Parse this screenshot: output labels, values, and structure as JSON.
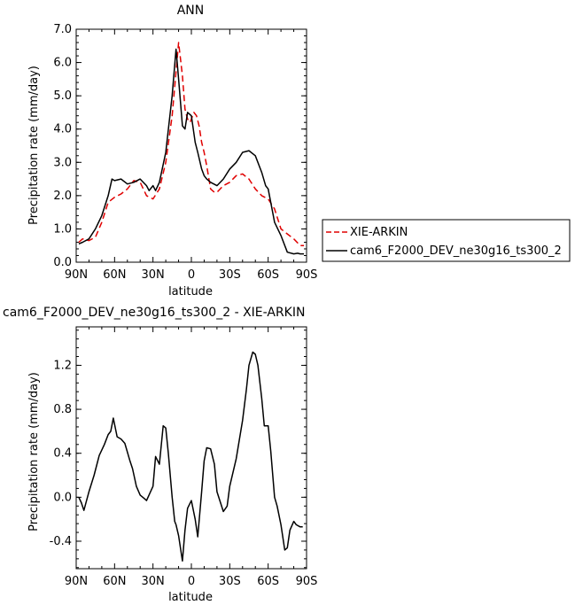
{
  "chart_data": [
    {
      "type": "line",
      "title": "ANN",
      "xlabel": "latitude",
      "ylabel": "Precipitation rate (mm/day)",
      "ylim": [
        0,
        7
      ],
      "xlim": [
        90,
        -90
      ],
      "xticks": [
        "90N",
        "60N",
        "30N",
        "0",
        "30S",
        "60S",
        "90S"
      ],
      "yticks": [
        "0.0",
        "1.0",
        "2.0",
        "3.0",
        "4.0",
        "5.0",
        "6.0",
        "7.0"
      ],
      "legend_position": "right",
      "series": [
        {
          "name": "XIE-ARKIN",
          "color": "#e00000",
          "dash": true,
          "x": [
            88,
            85,
            80,
            75,
            70,
            65,
            60,
            55,
            50,
            45,
            40,
            35,
            30,
            25,
            20,
            15,
            10,
            7,
            5,
            3,
            1,
            0,
            -2,
            -4,
            -6,
            -8,
            -10,
            -12,
            -15,
            -18,
            -20,
            -25,
            -30,
            -35,
            -40,
            -45,
            -50,
            -55,
            -60,
            -65,
            -70,
            -75,
            -80,
            -85,
            -88
          ],
          "y": [
            0.6,
            0.7,
            0.65,
            0.75,
            1.2,
            1.8,
            1.95,
            2.05,
            2.2,
            2.45,
            2.4,
            2.0,
            1.9,
            2.2,
            3.0,
            4.4,
            6.6,
            5.6,
            4.6,
            4.3,
            4.2,
            4.3,
            4.5,
            4.4,
            4.1,
            3.6,
            3.3,
            2.9,
            2.2,
            2.1,
            2.1,
            2.3,
            2.4,
            2.6,
            2.65,
            2.5,
            2.2,
            2.0,
            1.9,
            1.6,
            1.0,
            0.85,
            0.7,
            0.5,
            0.5
          ]
        },
        {
          "name": "cam6_F2000_DEV_ne30g16_ts300_2",
          "color": "#000000",
          "dash": false,
          "x": [
            88,
            85,
            80,
            75,
            70,
            65,
            62,
            60,
            55,
            50,
            45,
            40,
            35,
            33,
            30,
            28,
            25,
            20,
            15,
            12,
            10,
            7,
            5,
            3,
            0,
            -3,
            -5,
            -8,
            -10,
            -12,
            -15,
            -20,
            -25,
            -30,
            -35,
            -40,
            -45,
            -50,
            -55,
            -58,
            -60,
            -65,
            -70,
            -75,
            -80,
            -83,
            -85,
            -88
          ],
          "y": [
            0.55,
            0.6,
            0.7,
            1.0,
            1.4,
            2.0,
            2.5,
            2.45,
            2.5,
            2.35,
            2.4,
            2.5,
            2.3,
            2.15,
            2.3,
            2.15,
            2.4,
            3.3,
            5.0,
            6.4,
            5.5,
            4.1,
            4.0,
            4.5,
            4.4,
            3.6,
            3.3,
            2.8,
            2.6,
            2.5,
            2.4,
            2.3,
            2.5,
            2.8,
            3.0,
            3.3,
            3.35,
            3.2,
            2.7,
            2.3,
            2.2,
            1.2,
            0.8,
            0.3,
            0.25,
            0.27,
            0.25,
            0.25
          ]
        }
      ]
    },
    {
      "type": "line",
      "title": "cam6_F2000_DEV_ne30g16_ts300_2 - XIE-ARKIN",
      "xlabel": "latitude",
      "ylabel": "Precipitation rate (mm/day)",
      "ylim": [
        -0.65,
        1.55
      ],
      "xlim": [
        90,
        -90
      ],
      "xticks": [
        "90N",
        "60N",
        "30N",
        "0",
        "30S",
        "60S",
        "90S"
      ],
      "yticks": [
        "-0.4",
        "0.0",
        "0.4",
        "0.8",
        "1.2"
      ],
      "series": [
        {
          "color": "#000000",
          "x": [
            88,
            86,
            84,
            80,
            76,
            72,
            68,
            65,
            63,
            61,
            58,
            55,
            52,
            48,
            46,
            43,
            40,
            37,
            35,
            30,
            28,
            25,
            22,
            20,
            18,
            15,
            13,
            12,
            10,
            7,
            5,
            3,
            0,
            -3,
            -5,
            -8,
            -10,
            -12,
            -15,
            -18,
            -20,
            -25,
            -28,
            -30,
            -35,
            -40,
            -43,
            -45,
            -48,
            -50,
            -52,
            -55,
            -57,
            -60,
            -62,
            -65,
            -67,
            -70,
            -73,
            -75,
            -77,
            -80,
            -82,
            -85,
            -87
          ],
          "y": [
            0.0,
            -0.05,
            -0.12,
            0.05,
            0.2,
            0.38,
            0.48,
            0.57,
            0.6,
            0.72,
            0.55,
            0.53,
            0.49,
            0.33,
            0.26,
            0.1,
            0.02,
            -0.01,
            -0.03,
            0.1,
            0.37,
            0.3,
            0.65,
            0.63,
            0.4,
            0.0,
            -0.22,
            -0.25,
            -0.35,
            -0.58,
            -0.3,
            -0.1,
            -0.03,
            -0.2,
            -0.36,
            0.05,
            0.33,
            0.45,
            0.44,
            0.3,
            0.05,
            -0.13,
            -0.08,
            0.1,
            0.35,
            0.7,
            0.98,
            1.2,
            1.32,
            1.3,
            1.2,
            0.9,
            0.65,
            0.65,
            0.42,
            0.0,
            -0.08,
            -0.25,
            -0.48,
            -0.46,
            -0.3,
            -0.22,
            -0.25,
            -0.27,
            -0.27
          ]
        }
      ]
    }
  ]
}
